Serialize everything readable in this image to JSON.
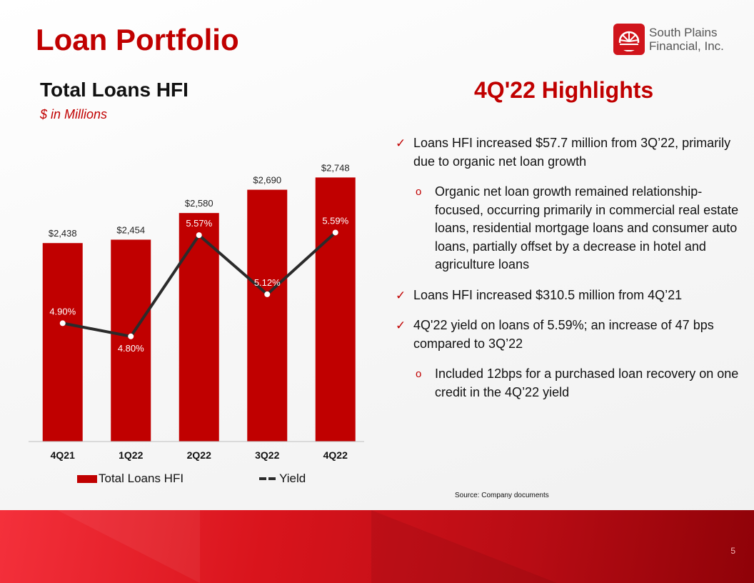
{
  "slide": {
    "title": "Loan Portfolio",
    "logo_line1": "South Plains",
    "logo_line2": "Financial, Inc.",
    "page_number": "5",
    "source": "Source: Company documents"
  },
  "chart_data": {
    "type": "bar",
    "title": "Total Loans HFI",
    "subtitle": "$ in Millions",
    "categories": [
      "4Q21",
      "1Q22",
      "2Q22",
      "3Q22",
      "4Q22"
    ],
    "series": [
      {
        "name": "Total Loans HFI",
        "type": "bar",
        "values": [
          2438,
          2454,
          2580,
          2690,
          2748
        ],
        "labels": [
          "$2,438",
          "$2,454",
          "$2,580",
          "$2,690",
          "$2,748"
        ],
        "color": "#c00000"
      },
      {
        "name": "Yield",
        "type": "line",
        "values": [
          4.9,
          4.8,
          5.57,
          5.12,
          5.59
        ],
        "labels": [
          "4.90%",
          "4.80%",
          "5.57%",
          "5.12%",
          "5.59%"
        ],
        "color": "#2b2b2b"
      }
    ],
    "bar_ylim": [
      1500,
      2800
    ],
    "line_ylim": [
      4.0,
      6.0
    ],
    "legend": "bottom",
    "grid": false
  },
  "highlights": {
    "title": "4Q'22 Highlights",
    "b1": "Loans HFI increased $57.7 million from 3Q’22, primarily due to organic net loan growth",
    "b1_sub": "Organic net loan growth remained relationship-focused, occurring primarily in commercial real estate loans, residential mortgage loans and consumer auto loans, partially offset by a decrease in hotel and agriculture loans",
    "b2": "Loans HFI increased $310.5 million from 4Q’21",
    "b3": "4Q'22 yield on loans of 5.59%; an increase of 47 bps compared to 3Q’22",
    "b3_sub": "Included 12bps for a purchased loan recovery on one credit in the 4Q’22 yield",
    "check_mark": "✓",
    "sub_mark": "o"
  }
}
